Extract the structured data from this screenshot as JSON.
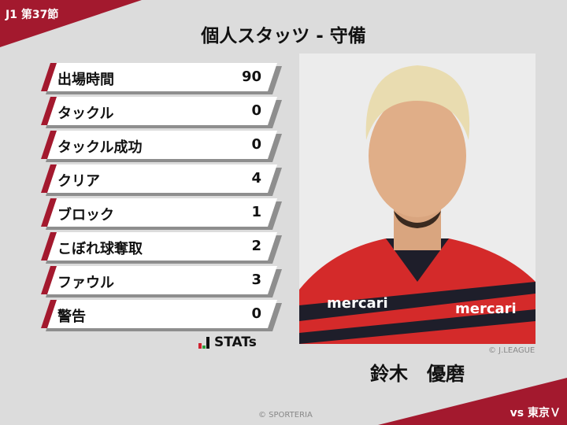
{
  "header": {
    "round": "J1 第37節",
    "title": "個人スタッツ - 守備",
    "opponent": "vs 東京Ｖ"
  },
  "stats": [
    {
      "label": "出場時間",
      "value": "90"
    },
    {
      "label": "タックル",
      "value": "0"
    },
    {
      "label": "タックル成功",
      "value": "0"
    },
    {
      "label": "クリア",
      "value": "4"
    },
    {
      "label": "ブロック",
      "value": "1"
    },
    {
      "label": "こぼれ球奪取",
      "value": "2"
    },
    {
      "label": "ファウル",
      "value": "3"
    },
    {
      "label": "警告",
      "value": "0"
    }
  ],
  "brand": {
    "stats_logo": "STATs"
  },
  "player": {
    "name": "鈴木　優磨",
    "photo_credit": "© J.LEAGUE",
    "sponsor": "mercari"
  },
  "footer": {
    "credit": "© SPORTERIA"
  },
  "colors": {
    "accent": "#a3192e",
    "background": "#dcdcdc"
  }
}
